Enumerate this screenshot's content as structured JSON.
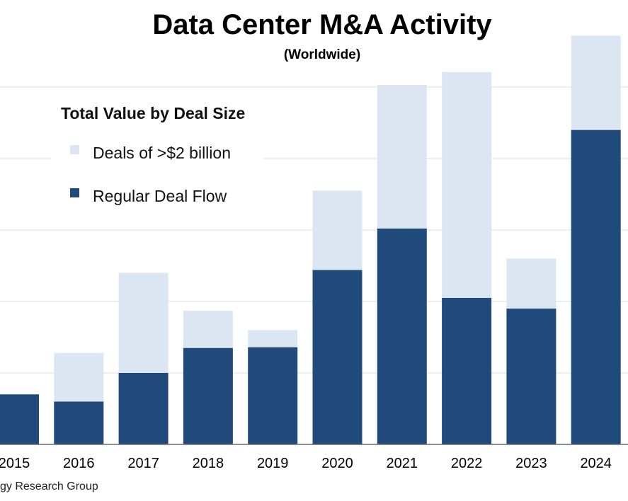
{
  "colors": {
    "regular": "#204a7c",
    "large": "#dce6f3",
    "grid": "#e9e9e9",
    "axis": "#6a6a6a"
  },
  "source_text": "gy Research Group",
  "chart_data": {
    "type": "bar",
    "stacked": true,
    "title": "Data Center M&A Activity",
    "subtitle": "(Worldwide)",
    "legend_title": "Total Value by Deal Size",
    "legend_position": "top-left",
    "categories": [
      "2015",
      "2016",
      "2017",
      "2018",
      "2019",
      "2020",
      "2021",
      "2022",
      "2023",
      "2024"
    ],
    "series": [
      {
        "name": "Regular Deal Flow",
        "color_key": "regular",
        "values": [
          7.0,
          6.0,
          10.0,
          13.5,
          13.6,
          24.4,
          30.2,
          20.5,
          19.0,
          44.0
        ]
      },
      {
        "name": "Deals of >$2 billion",
        "color_key": "large",
        "values": [
          0,
          6.8,
          14.0,
          5.2,
          2.4,
          11.1,
          20.1,
          31.6,
          7.0,
          13.2
        ]
      }
    ],
    "legend_order": [
      "Deals of >$2 billion",
      "Regular Deal Flow"
    ],
    "ylim": [
      0,
      60
    ],
    "grid_step": 10,
    "grid": true,
    "xlabel": "",
    "ylabel": ""
  }
}
